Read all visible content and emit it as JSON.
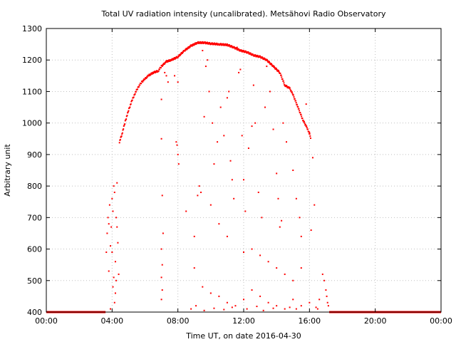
{
  "chart_data": {
    "type": "scatter",
    "title": "Total UV radiation intensity (uncalibrated). Metsähovi Radio Observatory",
    "xlabel": "Time UT, on date 2016-04-30",
    "ylabel": "Arbitrary unit",
    "xlim": [
      0,
      24
    ],
    "ylim": [
      400,
      1300
    ],
    "x_ticks": [
      0,
      4,
      8,
      12,
      16,
      20,
      24
    ],
    "x_tick_labels": [
      "00:00",
      "04:00",
      "08:00",
      "12:00",
      "16:00",
      "20:00",
      "00:00"
    ],
    "y_ticks": [
      400,
      500,
      600,
      700,
      800,
      900,
      1000,
      1100,
      1200,
      1300
    ],
    "y_tick_labels": [
      "400",
      "500",
      "600",
      "700",
      "800",
      "900",
      "1000",
      "1100",
      "1200",
      "1300"
    ],
    "grid": true,
    "marker_color": "#ff0000",
    "series": [
      {
        "baseline_segments": [
          [
            0,
            3.6
          ],
          [
            17.2,
            24
          ]
        ],
        "baseline_value": 400,
        "envelope": [
          [
            4.45,
            940
          ],
          [
            4.6,
            965
          ],
          [
            4.8,
            1005
          ],
          [
            5.0,
            1040
          ],
          [
            5.2,
            1070
          ],
          [
            5.4,
            1095
          ],
          [
            5.6,
            1115
          ],
          [
            5.8,
            1130
          ],
          [
            6.0,
            1140
          ],
          [
            6.2,
            1150
          ],
          [
            6.5,
            1160
          ],
          [
            6.8,
            1165
          ],
          [
            7.0,
            1180
          ],
          [
            7.3,
            1195
          ],
          [
            7.6,
            1200
          ],
          [
            8.0,
            1210
          ],
          [
            8.4,
            1230
          ],
          [
            8.8,
            1245
          ],
          [
            9.2,
            1255
          ],
          [
            9.6,
            1255
          ],
          [
            10.0,
            1252
          ],
          [
            10.5,
            1250
          ],
          [
            11.0,
            1248
          ],
          [
            11.4,
            1240
          ],
          [
            11.8,
            1230
          ],
          [
            12.2,
            1225
          ],
          [
            12.6,
            1215
          ],
          [
            13.0,
            1210
          ],
          [
            13.4,
            1200
          ],
          [
            13.8,
            1180
          ],
          [
            14.2,
            1160
          ],
          [
            14.5,
            1120
          ],
          [
            14.8,
            1110
          ],
          [
            15.0,
            1090
          ],
          [
            15.3,
            1050
          ],
          [
            15.6,
            1010
          ],
          [
            15.9,
            980
          ],
          [
            16.1,
            950
          ]
        ],
        "scatter": [
          [
            3.65,
            590
          ],
          [
            3.7,
            650
          ],
          [
            3.75,
            700
          ],
          [
            3.8,
            680
          ],
          [
            3.85,
            740
          ],
          [
            3.9,
            610
          ],
          [
            3.95,
            670
          ],
          [
            4.0,
            760
          ],
          [
            4.05,
            720
          ],
          [
            4.1,
            800
          ],
          [
            4.15,
            780
          ],
          [
            4.2,
            560
          ],
          [
            4.25,
            700
          ],
          [
            4.3,
            810
          ],
          [
            4.35,
            620
          ],
          [
            4.4,
            520
          ],
          [
            4.05,
            480
          ],
          [
            4.1,
            510
          ],
          [
            4.2,
            460
          ],
          [
            3.8,
            530
          ],
          [
            4.0,
            590
          ],
          [
            4.3,
            670
          ],
          [
            4.15,
            430
          ],
          [
            3.9,
            410
          ],
          [
            4.25,
            500
          ],
          [
            7.0,
            950
          ],
          [
            7.0,
            1075
          ],
          [
            7.05,
            770
          ],
          [
            7.1,
            650
          ],
          [
            7.0,
            600
          ],
          [
            7.05,
            550
          ],
          [
            7.0,
            510
          ],
          [
            7.05,
            470
          ],
          [
            7.0,
            440
          ],
          [
            7.2,
            1160
          ],
          [
            7.3,
            1150
          ],
          [
            7.4,
            1130
          ],
          [
            7.8,
            1150
          ],
          [
            8.0,
            1130
          ],
          [
            7.9,
            940
          ],
          [
            8.0,
            900
          ],
          [
            8.05,
            870
          ],
          [
            7.95,
            930
          ],
          [
            8.5,
            720
          ],
          [
            9.0,
            640
          ],
          [
            9.2,
            770
          ],
          [
            9.3,
            800
          ],
          [
            9.5,
            1230
          ],
          [
            9.7,
            1180
          ],
          [
            9.8,
            1200
          ],
          [
            9.6,
            1020
          ],
          [
            9.9,
            1100
          ],
          [
            10.1,
            1000
          ],
          [
            10.2,
            870
          ],
          [
            10.4,
            940
          ],
          [
            10.6,
            1050
          ],
          [
            10.8,
            960
          ],
          [
            11.0,
            1080
          ],
          [
            11.1,
            1100
          ],
          [
            11.2,
            880
          ],
          [
            11.3,
            820
          ],
          [
            11.4,
            760
          ],
          [
            11.6,
            1240
          ],
          [
            11.7,
            1160
          ],
          [
            11.8,
            1170
          ],
          [
            11.9,
            960
          ],
          [
            12.0,
            820
          ],
          [
            12.1,
            720
          ],
          [
            12.3,
            920
          ],
          [
            12.5,
            990
          ],
          [
            12.6,
            1120
          ],
          [
            12.7,
            1000
          ],
          [
            12.9,
            780
          ],
          [
            13.1,
            700
          ],
          [
            13.3,
            1050
          ],
          [
            13.4,
            1180
          ],
          [
            13.6,
            1100
          ],
          [
            13.8,
            980
          ],
          [
            14.0,
            840
          ],
          [
            14.1,
            760
          ],
          [
            14.2,
            670
          ],
          [
            14.3,
            690
          ],
          [
            14.4,
            1000
          ],
          [
            14.6,
            940
          ],
          [
            15.0,
            850
          ],
          [
            15.2,
            760
          ],
          [
            15.4,
            700
          ],
          [
            15.5,
            640
          ],
          [
            15.8,
            1060
          ],
          [
            16.0,
            970
          ],
          [
            16.2,
            890
          ],
          [
            16.3,
            740
          ],
          [
            16.1,
            660
          ],
          [
            9.4,
            780
          ],
          [
            10.0,
            740
          ],
          [
            10.5,
            680
          ],
          [
            11.0,
            640
          ],
          [
            12.0,
            590
          ],
          [
            12.5,
            600
          ],
          [
            13.0,
            580
          ],
          [
            13.5,
            560
          ],
          [
            14.0,
            540
          ],
          [
            14.5,
            520
          ],
          [
            15.0,
            500
          ],
          [
            15.5,
            540
          ],
          [
            9.0,
            540
          ],
          [
            9.5,
            480
          ],
          [
            10.0,
            460
          ],
          [
            10.5,
            450
          ],
          [
            11.0,
            430
          ],
          [
            11.5,
            420
          ],
          [
            12.0,
            440
          ],
          [
            12.5,
            470
          ],
          [
            13.0,
            450
          ],
          [
            13.5,
            430
          ],
          [
            14.0,
            420
          ],
          [
            14.5,
            410
          ],
          [
            15.0,
            440
          ],
          [
            15.5,
            420
          ],
          [
            16.0,
            430
          ],
          [
            16.5,
            410
          ],
          [
            16.8,
            520
          ],
          [
            16.9,
            500
          ],
          [
            17.0,
            470
          ],
          [
            17.05,
            450
          ],
          [
            17.1,
            430
          ],
          [
            17.15,
            420
          ],
          [
            16.6,
            440
          ],
          [
            16.4,
            415
          ],
          [
            8.8,
            410
          ],
          [
            9.1,
            420
          ],
          [
            9.6,
            405
          ],
          [
            10.2,
            412
          ],
          [
            10.8,
            408
          ],
          [
            11.3,
            415
          ],
          [
            12.2,
            410
          ],
          [
            12.8,
            418
          ],
          [
            13.2,
            405
          ],
          [
            13.8,
            412
          ],
          [
            14.8,
            415
          ],
          [
            15.2,
            410
          ]
        ]
      }
    ]
  }
}
